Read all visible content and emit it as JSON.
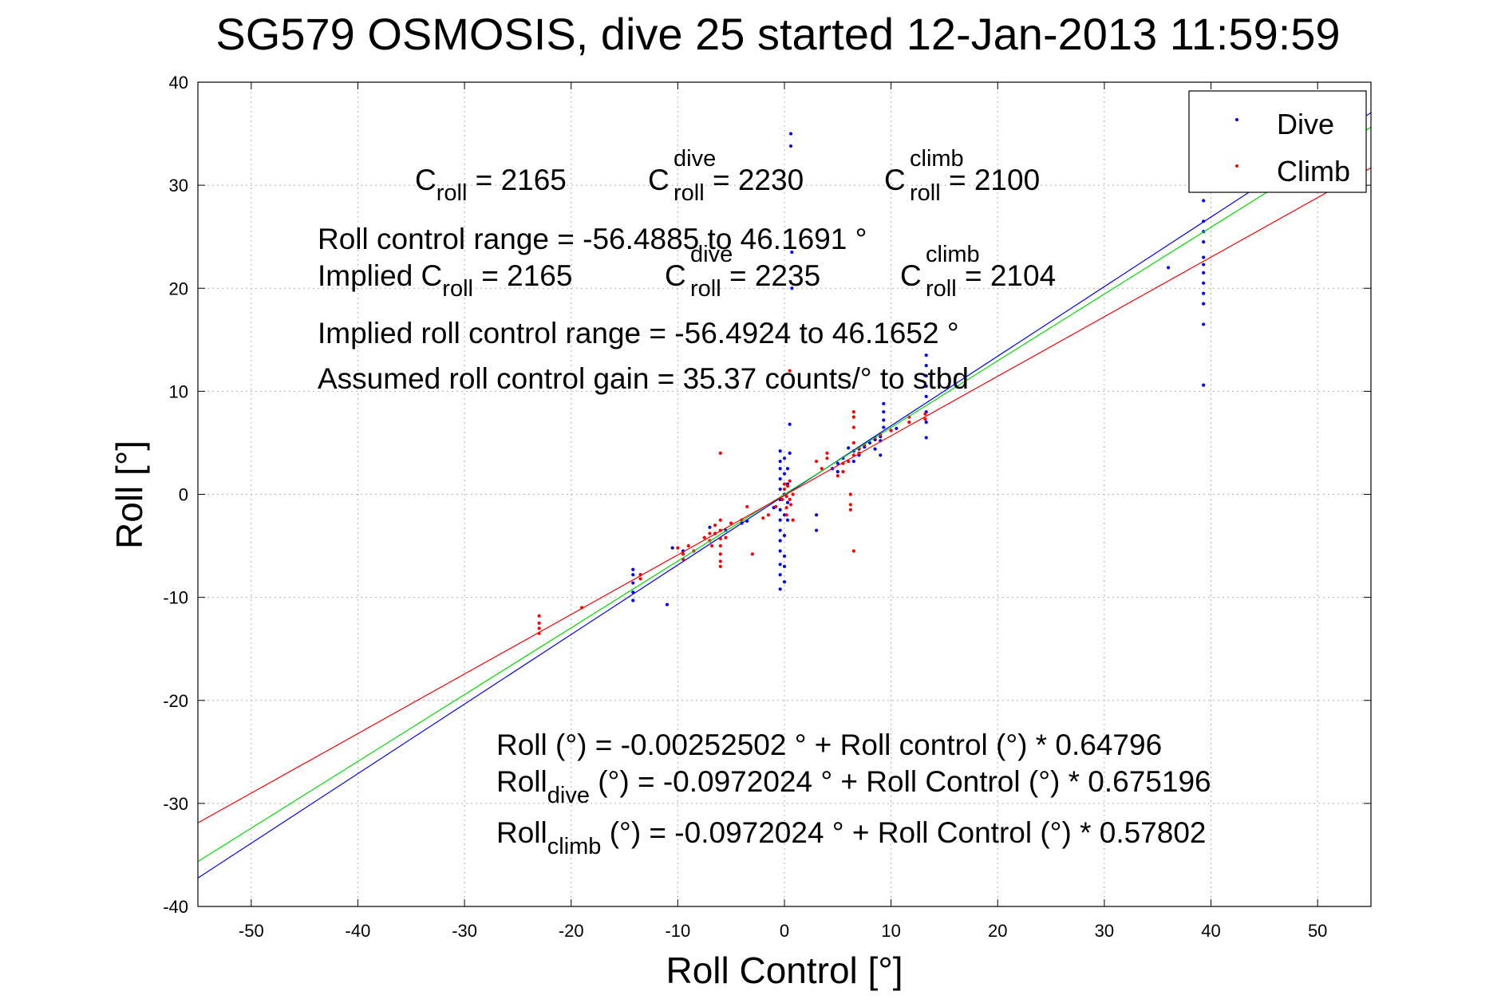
{
  "chart_data": {
    "type": "scatter",
    "title": "SG579 OSMOSIS, dive 25 started 12-Jan-2013 11:59:59",
    "xlabel": "Roll Control [°]",
    "ylabel": "Roll [°]",
    "xlim": [
      -55,
      55
    ],
    "ylim": [
      -40,
      40
    ],
    "xticks": [
      -50,
      -40,
      -30,
      -20,
      -10,
      0,
      10,
      20,
      30,
      40,
      50
    ],
    "yticks": [
      -40,
      -30,
      -20,
      -10,
      0,
      10,
      20,
      30,
      40
    ],
    "grid": true,
    "legend_position": "top-right",
    "legend": [
      {
        "label": "Dive",
        "color": "#0000ff"
      },
      {
        "label": "Climb",
        "color": "#ff0000"
      }
    ],
    "series": [
      {
        "name": "Dive",
        "color": "#0000ff",
        "points": [
          [
            -14.2,
            -7.3
          ],
          [
            -14.2,
            -7.8
          ],
          [
            -14.2,
            -8.6
          ],
          [
            -14.2,
            -9.5
          ],
          [
            -14.2,
            -10.3
          ],
          [
            -13.5,
            -7.8
          ],
          [
            -11,
            -10.7
          ],
          [
            -10.5,
            -5.2
          ],
          [
            -9.5,
            -5.5
          ],
          [
            -7,
            -3.2
          ],
          [
            -6.5,
            -3.8
          ],
          [
            -5.5,
            -3.5
          ],
          [
            -4,
            -2.8
          ],
          [
            -3.5,
            -2.6
          ],
          [
            -1,
            -1.3
          ],
          [
            -0.4,
            -9.2
          ],
          [
            -0.4,
            -7.8
          ],
          [
            -0.4,
            -6.8
          ],
          [
            -0.4,
            -5.5
          ],
          [
            -0.4,
            -4.5
          ],
          [
            -0.4,
            -3.5
          ],
          [
            -0.4,
            -2.5
          ],
          [
            -0.4,
            -1.5
          ],
          [
            -0.4,
            -0.5
          ],
          [
            -0.4,
            0.5
          ],
          [
            -0.4,
            1.5
          ],
          [
            -0.4,
            2.5
          ],
          [
            -0.4,
            3.2
          ],
          [
            -0.4,
            4.2
          ],
          [
            0,
            -8.5
          ],
          [
            0,
            -7
          ],
          [
            0,
            -6
          ],
          [
            0,
            -4
          ],
          [
            0,
            -2
          ],
          [
            0,
            0
          ],
          [
            0,
            2
          ],
          [
            0,
            3.5
          ],
          [
            0.3,
            -2.5
          ],
          [
            0.3,
            -0.8
          ],
          [
            0.3,
            1
          ],
          [
            0.3,
            2.5
          ],
          [
            0.5,
            4
          ],
          [
            0.5,
            6.8
          ],
          [
            0.6,
            33.8
          ],
          [
            0.6,
            35
          ],
          [
            0.7,
            20
          ],
          [
            0.7,
            23.5
          ],
          [
            3,
            -3.5
          ],
          [
            3,
            -2
          ],
          [
            4.5,
            2.5
          ],
          [
            5,
            3
          ],
          [
            5,
            2.2
          ],
          [
            5.5,
            3.5
          ],
          [
            6,
            4.5
          ],
          [
            6.5,
            4.2
          ],
          [
            6.5,
            3.2
          ],
          [
            7,
            3.8
          ],
          [
            7,
            4.4
          ],
          [
            7.5,
            4.6
          ],
          [
            8,
            5
          ],
          [
            8.5,
            5.3
          ],
          [
            8.5,
            4.4
          ],
          [
            9,
            5.6
          ],
          [
            9,
            5.2
          ],
          [
            9,
            3.8
          ],
          [
            9.3,
            6.5
          ],
          [
            9.3,
            7.2
          ],
          [
            9.3,
            8
          ],
          [
            9.3,
            8.8
          ],
          [
            10,
            6.2
          ],
          [
            10.5,
            6.4
          ],
          [
            13.3,
            5.5
          ],
          [
            13.3,
            7
          ],
          [
            13.3,
            8
          ],
          [
            13.3,
            9.5
          ],
          [
            13.3,
            10.5
          ],
          [
            13.3,
            11.5
          ],
          [
            13.3,
            12.5
          ],
          [
            13.3,
            13.5
          ],
          [
            36,
            22
          ],
          [
            39.3,
            10.6
          ],
          [
            39.3,
            16.5
          ],
          [
            39.3,
            18.5
          ],
          [
            39.3,
            19.5
          ],
          [
            39.3,
            20.5
          ],
          [
            39.3,
            21.5
          ],
          [
            39.3,
            22.3
          ],
          [
            39.3,
            23
          ],
          [
            39.3,
            24.5
          ],
          [
            39.3,
            25.5
          ],
          [
            39.3,
            26.5
          ],
          [
            39.3,
            28.5
          ],
          [
            39.3,
            30.5
          ],
          [
            39.3,
            31.5
          ]
        ]
      },
      {
        "name": "Climb",
        "color": "#ff0000",
        "points": [
          [
            -23,
            -11.8
          ],
          [
            -23,
            -12.5
          ],
          [
            -23,
            -13
          ],
          [
            -23,
            -13.5
          ],
          [
            -19,
            -11
          ],
          [
            -13.5,
            -7.8
          ],
          [
            -13.5,
            -8.2
          ],
          [
            -10,
            -5.2
          ],
          [
            -9.5,
            -5.8
          ],
          [
            -9.5,
            -6.3
          ],
          [
            -9,
            -5
          ],
          [
            -8.5,
            -5.5
          ],
          [
            -7.5,
            -4.2
          ],
          [
            -7,
            -3.8
          ],
          [
            -7,
            -4.5
          ],
          [
            -6.8,
            -5
          ],
          [
            -6.5,
            -3.8
          ],
          [
            -6.5,
            -3
          ],
          [
            -6,
            -2.5
          ],
          [
            -6,
            -3.5
          ],
          [
            -6,
            -4.3
          ],
          [
            -6,
            -5
          ],
          [
            -6,
            -5.8
          ],
          [
            -6,
            -6.5
          ],
          [
            -6,
            -7
          ],
          [
            -6,
            4
          ],
          [
            -5.5,
            -4.2
          ],
          [
            -5,
            -2.8
          ],
          [
            -4,
            -2.5
          ],
          [
            -3.5,
            -1.2
          ],
          [
            -3,
            -5.8
          ],
          [
            -2,
            -2.3
          ],
          [
            -1.5,
            -2
          ],
          [
            -0.8,
            -1.2
          ],
          [
            -0.2,
            -0.5
          ],
          [
            0,
            0.5
          ],
          [
            0,
            1
          ],
          [
            0.2,
            -0.2
          ],
          [
            0.2,
            -1.3
          ],
          [
            0.2,
            -2
          ],
          [
            0.3,
            0.8
          ],
          [
            0.5,
            1.3
          ],
          [
            0.5,
            -0.5
          ],
          [
            0.6,
            -1
          ],
          [
            0.8,
            0
          ],
          [
            0.8,
            -2.5
          ],
          [
            0.5,
            12
          ],
          [
            3,
            3.2
          ],
          [
            3.5,
            2.5
          ],
          [
            4,
            3.5
          ],
          [
            4,
            4
          ],
          [
            5,
            1.8
          ],
          [
            5.5,
            2.2
          ],
          [
            5.5,
            3
          ],
          [
            6,
            3.2
          ],
          [
            6.2,
            0
          ],
          [
            6.2,
            -1
          ],
          [
            6.2,
            -1.5
          ],
          [
            6.5,
            -5.5
          ],
          [
            6.5,
            3.8
          ],
          [
            6.5,
            5
          ],
          [
            6.5,
            6.5
          ],
          [
            6.5,
            7.5
          ],
          [
            6.5,
            8
          ],
          [
            7,
            4
          ],
          [
            7,
            4.5
          ],
          [
            7.5,
            4.8
          ],
          [
            8.5,
            5.5
          ],
          [
            9,
            5.8
          ],
          [
            10,
            6.2
          ],
          [
            11.7,
            7
          ],
          [
            11.7,
            7.5
          ],
          [
            13.2,
            7.3
          ],
          [
            13.2,
            7.8
          ]
        ]
      },
      {
        "name": "",
        "style": "line",
        "color": "#0000ff",
        "x": [
          -55,
          55
        ],
        "y": [
          -37.24,
          37.04
        ]
      },
      {
        "name": "",
        "style": "line",
        "color": "#00dd00",
        "x": [
          -55,
          55
        ],
        "y": [
          -35.64,
          35.64
        ]
      },
      {
        "name": "",
        "style": "line",
        "color": "#ff0000",
        "x": [
          -55,
          55
        ],
        "y": [
          -31.89,
          31.69
        ]
      }
    ],
    "annotations": {
      "c_roll": {
        "pre": "C",
        "sub": "roll",
        "val": " = 2165"
      },
      "c_dive": {
        "pre": "C",
        "sup": "dive",
        "sub": "roll",
        "val": " = 2230"
      },
      "c_climb": {
        "pre": "C",
        "sup": "climb",
        "sub": "roll",
        "val": " = 2100"
      },
      "range": "Roll control range = -56.4885 to 46.1691 °",
      "implied_pre": "Implied C",
      "implied_sub": "roll",
      "implied_val": " = 2165",
      "imp_dive": {
        "pre": "C",
        "sup": "dive",
        "sub": "roll",
        "val": " = 2235"
      },
      "imp_climb": {
        "pre": "C",
        "sup": "climb",
        "sub": "roll",
        "val": " = 2104"
      },
      "implied_range": "Implied roll control range = -56.4924 to 46.1652 °",
      "gain": "Assumed roll control gain = 35.37 counts/° to stbd",
      "fit_all": "Roll (°) = -0.00252502 ° + Roll control (°) * 0.64796",
      "fit_dive_pre": "Roll",
      "fit_dive_sub": "dive",
      "fit_dive_post": " (°) = -0.0972024 ° + Roll Control (°) * 0.675196",
      "fit_climb_pre": "Roll",
      "fit_climb_sub": "climb",
      "fit_climb_post": " (°) = -0.0972024 ° + Roll Control (°) * 0.57802"
    }
  }
}
